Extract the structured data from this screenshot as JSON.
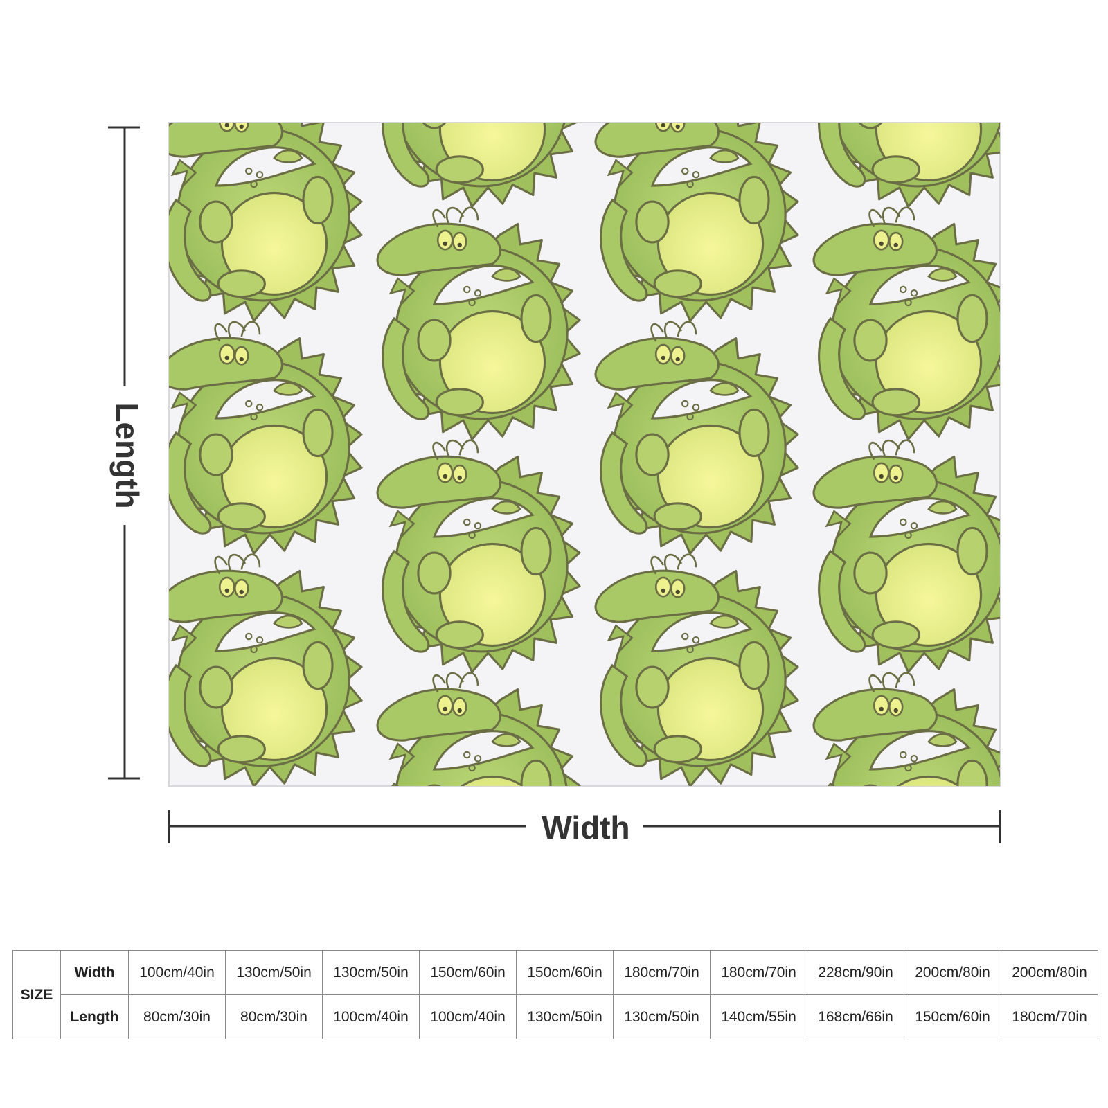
{
  "diagram": {
    "length_label": "Length",
    "width_label": "Width"
  },
  "colors": {
    "blanket_background": "#f4f4f6",
    "dragon_body": "#a9c966",
    "dragon_belly": "#eef28e",
    "dragon_outline": "#6b6e45",
    "dimension_line": "#333333"
  },
  "pattern": {
    "motif": "curled-green-dragon-icon"
  },
  "size_table": {
    "size_label": "SIZE",
    "width_label": "Width",
    "length_label": "Length",
    "widths": [
      "100cm/40in",
      "130cm/50in",
      "130cm/50in",
      "150cm/60in",
      "150cm/60in",
      "180cm/70in",
      "180cm/70in",
      "228cm/90in",
      "200cm/80in",
      "200cm/80in"
    ],
    "lengths": [
      "80cm/30in",
      "80cm/30in",
      "100cm/40in",
      "100cm/40in",
      "130cm/50in",
      "130cm/50in",
      "140cm/55in",
      "168cm/66in",
      "150cm/60in",
      "180cm/70in"
    ]
  }
}
